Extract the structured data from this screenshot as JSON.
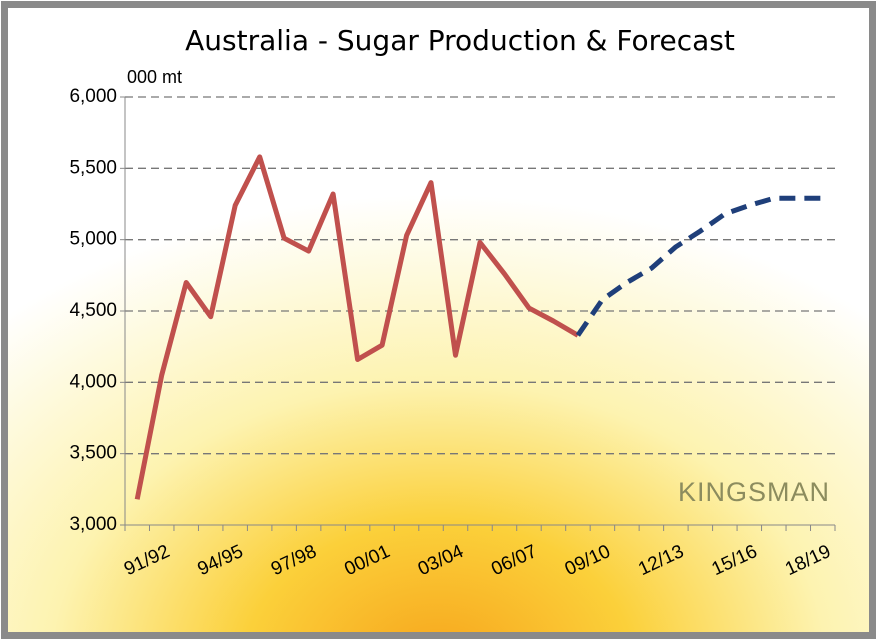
{
  "chart_data": {
    "type": "line",
    "title": "Australia - Sugar Production & Forecast",
    "y_unit_label": "000 mt",
    "watermark": "KINGSMAN",
    "categories": [
      "91/92",
      null,
      null,
      "94/95",
      null,
      null,
      "97/98",
      null,
      null,
      "00/01",
      null,
      null,
      "03/04",
      null,
      null,
      "06/07",
      null,
      null,
      "09/10",
      null,
      null,
      "12/13",
      null,
      null,
      "15/16",
      null,
      null,
      "18/19",
      null
    ],
    "series": [
      {
        "color": "#c0504d",
        "line_style": "solid",
        "values": [
          3180,
          4050,
          4700,
          4460,
          5240,
          5580,
          5010,
          4920,
          5320,
          4160,
          4260,
          5030,
          5400,
          4190,
          4980,
          4760,
          4520,
          4430,
          4330,
          null,
          null,
          null,
          null,
          null,
          null,
          null,
          null,
          null,
          null
        ]
      },
      {
        "color": "#1f3f7a",
        "line_style": "dashed",
        "values": [
          null,
          null,
          null,
          null,
          null,
          null,
          null,
          null,
          null,
          null,
          null,
          null,
          null,
          null,
          null,
          null,
          null,
          null,
          4330,
          4580,
          4700,
          4800,
          4950,
          5060,
          5180,
          5240,
          5290,
          5290,
          5290
        ]
      }
    ],
    "ylim": [
      3000,
      6000
    ],
    "yticks": [
      {
        "value": 3000,
        "label": "3,000"
      },
      {
        "value": 3500,
        "label": "3,500"
      },
      {
        "value": 4000,
        "label": "4,000"
      },
      {
        "value": 4500,
        "label": "4,500"
      },
      {
        "value": 5000,
        "label": "5,000"
      },
      {
        "value": 5500,
        "label": "5,500"
      },
      {
        "value": 6000,
        "label": "6,000"
      }
    ],
    "grid": true
  }
}
